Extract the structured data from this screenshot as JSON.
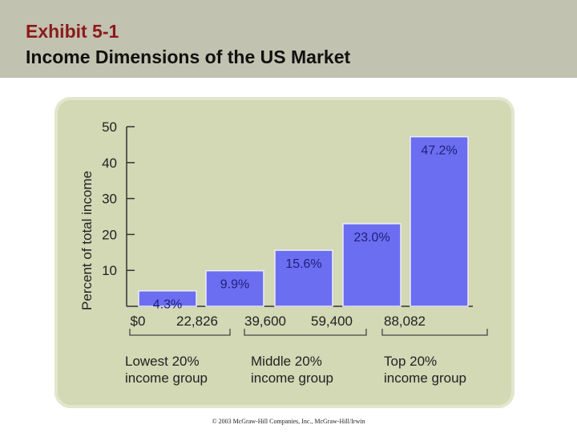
{
  "slide": {
    "title_line1": "Exhibit 5-1",
    "title_line2": "Income Dimensions of the US Market",
    "footer": "© 2003 McGraw-Hill Companies, Inc., McGraw-Hill/Irwin"
  },
  "colors": {
    "header_bg": "#c2c2b0",
    "title_accent": "#8b1a1a",
    "panel_bg": "#d3d8b5",
    "bar_fill": "#6b6ef0",
    "label_text": "#1f1f7a"
  },
  "chart_data": {
    "type": "bar",
    "ylabel": "Percent of total income",
    "ylim": [
      0,
      50
    ],
    "yticks": [
      10,
      20,
      30,
      40,
      50
    ],
    "values": [
      4.3,
      9.9,
      15.6,
      23.0,
      47.2
    ],
    "value_labels": [
      "4.3%",
      "9.9%",
      "15.6%",
      "23.0%",
      "47.2%"
    ],
    "x_boundaries": [
      "$0",
      "22,826",
      "39,600",
      "59,400",
      "88,082"
    ],
    "groups": [
      {
        "line1": "Lowest 20%",
        "line2": "income group"
      },
      {
        "line1": "Middle 20%",
        "line2": "income group"
      },
      {
        "line1": "Top 20%",
        "line2": "income group"
      }
    ],
    "grid": false
  }
}
